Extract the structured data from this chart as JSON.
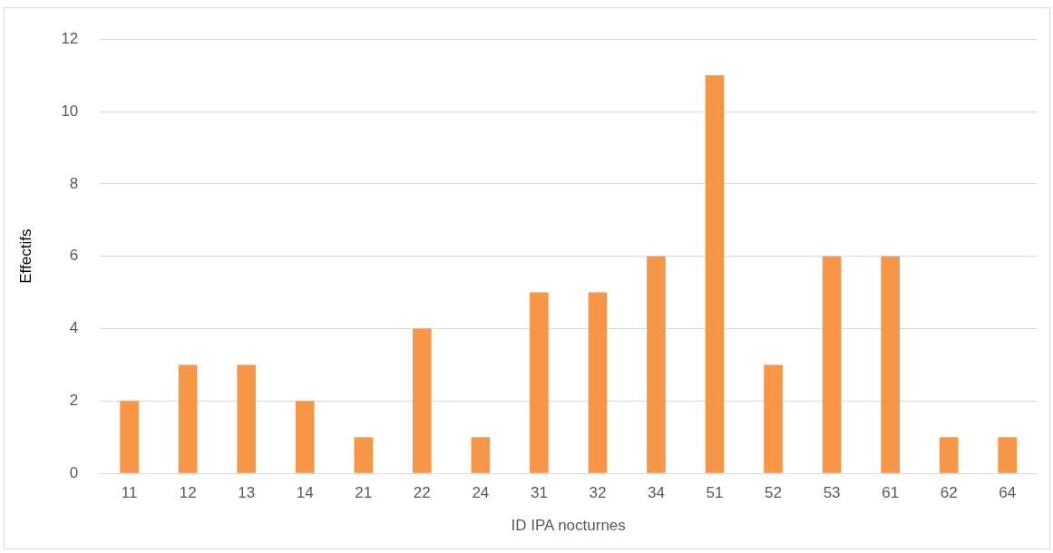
{
  "chart_data": {
    "type": "bar",
    "xlabel": "ID IPA nocturnes",
    "ylabel": "Effectifs",
    "categories": [
      "11",
      "12",
      "13",
      "14",
      "21",
      "22",
      "24",
      "31",
      "32",
      "34",
      "51",
      "52",
      "53",
      "61",
      "62",
      "64"
    ],
    "values": [
      2,
      3,
      3,
      2,
      1,
      4,
      1,
      5,
      5,
      6,
      11,
      3,
      6,
      6,
      1,
      1
    ],
    "color": "#f79646",
    "ylim": [
      0,
      12
    ],
    "yticks": [
      0,
      2,
      4,
      6,
      8,
      10,
      12
    ],
    "grid": "y",
    "legend": false
  }
}
